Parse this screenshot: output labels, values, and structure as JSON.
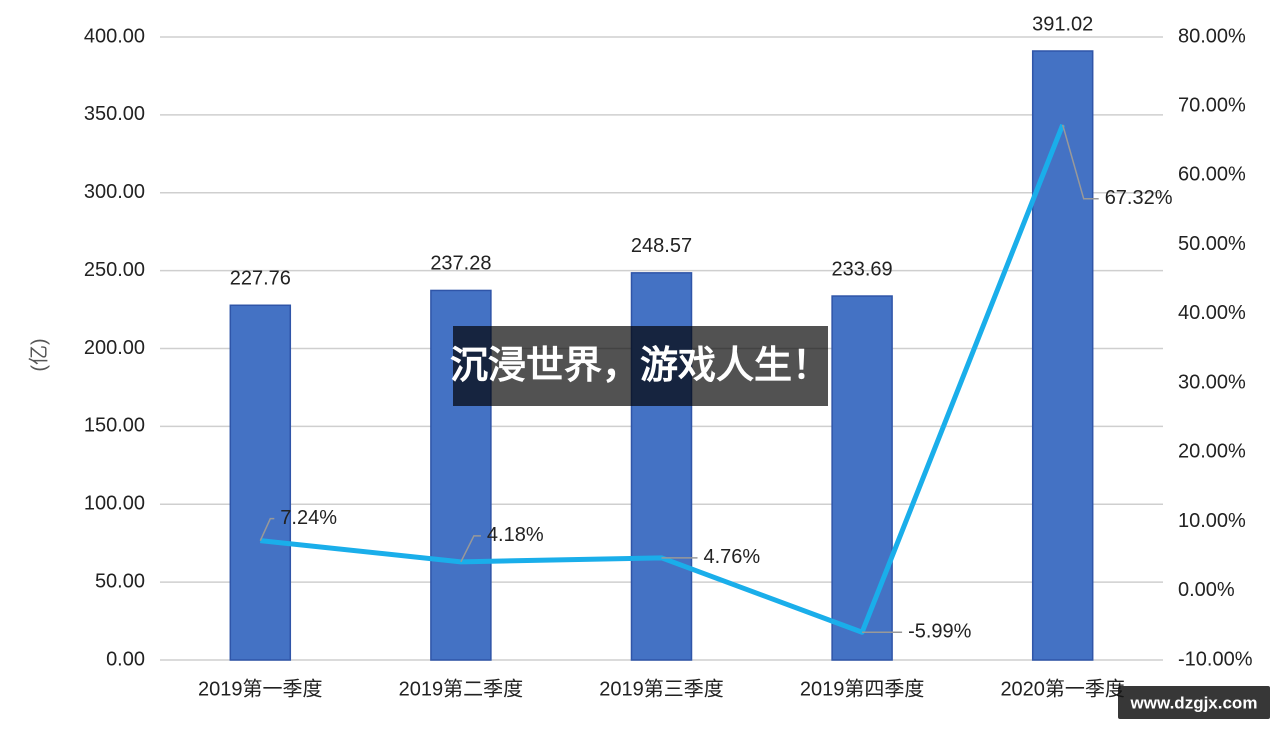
{
  "chart_data": {
    "type": "bar",
    "y_label": "(亿)",
    "categories": [
      "2019第一季度",
      "2019第二季度",
      "2019第三季度",
      "2019第四季度",
      "2020第一季度"
    ],
    "series": [
      {
        "type": "bar",
        "color": "#4472c4",
        "values": [
          227.76,
          237.28,
          248.57,
          233.69,
          391.02
        ]
      },
      {
        "type": "line",
        "axis": "y2",
        "color": "#1aaeea",
        "values": [
          7.24,
          4.18,
          4.76,
          -5.99,
          67.32
        ],
        "value_labels": [
          "7.24%",
          "4.18%",
          "4.76%",
          "-5.99%",
          "67.32%"
        ]
      }
    ],
    "ylim": [
      0,
      400
    ],
    "yticks": [
      {
        "value": 0,
        "label": "0.00"
      },
      {
        "value": 50,
        "label": "50.00"
      },
      {
        "value": 100,
        "label": "100.00"
      },
      {
        "value": 150,
        "label": "150.00"
      },
      {
        "value": 200,
        "label": "200.00"
      },
      {
        "value": 250,
        "label": "250.00"
      },
      {
        "value": 300,
        "label": "300.00"
      },
      {
        "value": 350,
        "label": "350.00"
      },
      {
        "value": 400,
        "label": "400.00"
      }
    ],
    "y2lim": [
      -10,
      80
    ],
    "y2ticks": [
      {
        "value": -10,
        "label": "-10.00%"
      },
      {
        "value": 0,
        "label": "0.00%"
      },
      {
        "value": 10,
        "label": "10.00%"
      },
      {
        "value": 20,
        "label": "20.00%"
      },
      {
        "value": 30,
        "label": "30.00%"
      },
      {
        "value": 40,
        "label": "40.00%"
      },
      {
        "value": 50,
        "label": "50.00%"
      },
      {
        "value": 60,
        "label": "60.00%"
      },
      {
        "value": 70,
        "label": "70.00%"
      },
      {
        "value": 80,
        "label": "80.00%"
      }
    ],
    "grid": true
  },
  "overlay": {
    "banner": "沉浸世界，游戏人生！",
    "watermark": "www.dzgjx.com"
  }
}
